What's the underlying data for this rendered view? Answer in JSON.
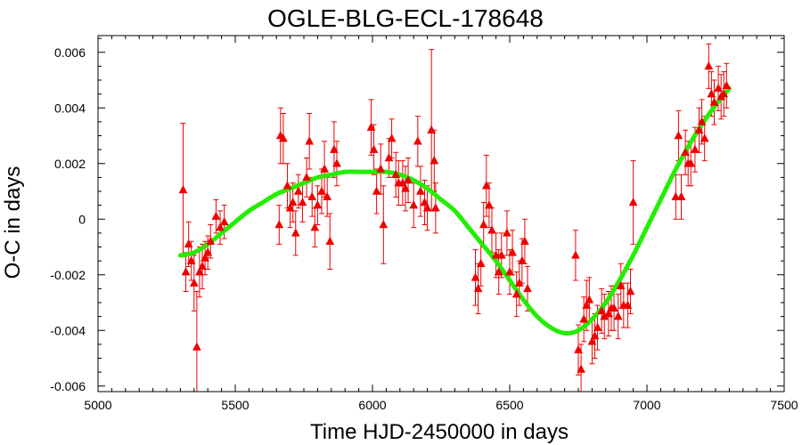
{
  "chart_data": {
    "type": "scatter",
    "title": "OGLE-BLG-ECL-178648",
    "xlabel": "Time HJD-2450000 in days",
    "ylabel": "O-C in days",
    "xlim": [
      5000,
      7500
    ],
    "ylim": [
      -0.0062,
      0.0066
    ],
    "xticks": [
      {
        "value": 5000,
        "label": "5000"
      },
      {
        "value": 5500,
        "label": "5500"
      },
      {
        "value": 6000,
        "label": "6000"
      },
      {
        "value": 6500,
        "label": "6500"
      },
      {
        "value": 7000,
        "label": "7000"
      },
      {
        "value": 7500,
        "label": "7500"
      }
    ],
    "yticks": [
      {
        "value": -0.006,
        "label": "-0.006"
      },
      {
        "value": -0.004,
        "label": "-0.004"
      },
      {
        "value": -0.002,
        "label": "-0.002"
      },
      {
        "value": 0,
        "label": "0"
      },
      {
        "value": 0.002,
        "label": "0.002"
      },
      {
        "value": 0.004,
        "label": "0.004"
      },
      {
        "value": 0.006,
        "label": "0.006"
      }
    ],
    "grid": false,
    "colors": {
      "points": "#ee0000",
      "fit": "#22ee00",
      "axes": "#000000"
    },
    "series": [
      {
        "type": "errorbar-scatter",
        "marker": "triangle",
        "points": [
          {
            "x": 5310,
            "y": 0.00105,
            "err": 0.0024
          },
          {
            "x": 5320,
            "y": -0.0019,
            "err": 0.0007
          },
          {
            "x": 5330,
            "y": -0.0009,
            "err": 0.0008
          },
          {
            "x": 5340,
            "y": -0.0015,
            "err": 0.0007
          },
          {
            "x": 5350,
            "y": -0.0023,
            "err": 0.001
          },
          {
            "x": 5360,
            "y": -0.0046,
            "err": 0.002
          },
          {
            "x": 5370,
            "y": -0.0019,
            "err": 0.0009
          },
          {
            "x": 5380,
            "y": -0.0017,
            "err": 0.0008
          },
          {
            "x": 5390,
            "y": -0.0014,
            "err": 0.0006
          },
          {
            "x": 5400,
            "y": -0.0012,
            "err": 0.0006
          },
          {
            "x": 5410,
            "y": -0.0008,
            "err": 0.0006
          },
          {
            "x": 5430,
            "y": 0.0001,
            "err": 0.0006
          },
          {
            "x": 5445,
            "y": -0.0003,
            "err": 0.0006
          },
          {
            "x": 5460,
            "y": -0.0001,
            "err": 0.0006
          },
          {
            "x": 5660,
            "y": -0.0002,
            "err": 0.0007
          },
          {
            "x": 5665,
            "y": 0.003,
            "err": 0.001
          },
          {
            "x": 5675,
            "y": 0.0029,
            "err": 0.0009
          },
          {
            "x": 5690,
            "y": 0.0012,
            "err": 0.0008
          },
          {
            "x": 5700,
            "y": 0.0004,
            "err": 0.0007
          },
          {
            "x": 5710,
            "y": 0.0006,
            "err": 0.0007
          },
          {
            "x": 5720,
            "y": -0.0005,
            "err": 0.0008
          },
          {
            "x": 5730,
            "y": 0.001,
            "err": 0.0006
          },
          {
            "x": 5745,
            "y": 0.0006,
            "err": 0.0007
          },
          {
            "x": 5760,
            "y": 0.0015,
            "err": 0.0007
          },
          {
            "x": 5770,
            "y": 0.0028,
            "err": 0.001
          },
          {
            "x": 5780,
            "y": 0.0008,
            "err": 0.0007
          },
          {
            "x": 5790,
            "y": -0.0003,
            "err": 0.0007
          },
          {
            "x": 5800,
            "y": 0.0005,
            "err": 0.0007
          },
          {
            "x": 5815,
            "y": 0.001,
            "err": 0.0008
          },
          {
            "x": 5825,
            "y": 0.0018,
            "err": 0.001
          },
          {
            "x": 5835,
            "y": 0.0008,
            "err": 0.0007
          },
          {
            "x": 5845,
            "y": -0.0008,
            "err": 0.001
          },
          {
            "x": 5860,
            "y": 0.0025,
            "err": 0.001
          },
          {
            "x": 5870,
            "y": 0.002,
            "err": 0.0008
          },
          {
            "x": 5995,
            "y": 0.0033,
            "err": 0.001
          },
          {
            "x": 6005,
            "y": 0.0025,
            "err": 0.0009
          },
          {
            "x": 6015,
            "y": 0.001,
            "err": 0.0008
          },
          {
            "x": 6030,
            "y": 0.0018,
            "err": 0.0009
          },
          {
            "x": 6040,
            "y": -0.0002,
            "err": 0.0014
          },
          {
            "x": 6060,
            "y": 0.0022,
            "err": 0.0007
          },
          {
            "x": 6070,
            "y": 0.0029,
            "err": 0.0007
          },
          {
            "x": 6085,
            "y": 0.0016,
            "err": 0.0008
          },
          {
            "x": 6095,
            "y": 0.0013,
            "err": 0.0008
          },
          {
            "x": 6110,
            "y": 0.0013,
            "err": 0.0008
          },
          {
            "x": 6120,
            "y": 0.0011,
            "err": 0.0008
          },
          {
            "x": 6130,
            "y": 0.0014,
            "err": 0.0008
          },
          {
            "x": 6150,
            "y": 0.0005,
            "err": 0.0008
          },
          {
            "x": 6165,
            "y": 0.0028,
            "err": 0.0009
          },
          {
            "x": 6175,
            "y": 0.001,
            "err": 0.0009
          },
          {
            "x": 6190,
            "y": 0.0006,
            "err": 0.0008
          },
          {
            "x": 6200,
            "y": 0.0004,
            "err": 0.0008
          },
          {
            "x": 6215,
            "y": 0.0032,
            "err": 0.0029
          },
          {
            "x": 6225,
            "y": 0.0021,
            "err": 0.0011
          },
          {
            "x": 6230,
            "y": 0.0004,
            "err": 0.0009
          },
          {
            "x": 6375,
            "y": -0.0021,
            "err": 0.001
          },
          {
            "x": 6385,
            "y": -0.0025,
            "err": 0.0009
          },
          {
            "x": 6395,
            "y": -0.0016,
            "err": 0.0008
          },
          {
            "x": 6405,
            "y": -0.0002,
            "err": 0.0008
          },
          {
            "x": 6415,
            "y": 0.0012,
            "err": 0.0011
          },
          {
            "x": 6425,
            "y": 0.0005,
            "err": 0.0008
          },
          {
            "x": 6435,
            "y": -0.0004,
            "err": 0.0008
          },
          {
            "x": 6450,
            "y": -0.0013,
            "err": 0.0008
          },
          {
            "x": 6460,
            "y": -0.0019,
            "err": 0.0008
          },
          {
            "x": 6470,
            "y": -0.0013,
            "err": 0.0008
          },
          {
            "x": 6490,
            "y": -0.0005,
            "err": 0.0008
          },
          {
            "x": 6500,
            "y": -0.0019,
            "err": 0.0008
          },
          {
            "x": 6510,
            "y": -0.0012,
            "err": 0.0008
          },
          {
            "x": 6525,
            "y": -0.0027,
            "err": 0.0008
          },
          {
            "x": 6535,
            "y": -0.0023,
            "err": 0.0008
          },
          {
            "x": 6545,
            "y": -0.0015,
            "err": 0.0008
          },
          {
            "x": 6555,
            "y": -0.0008,
            "err": 0.0008
          },
          {
            "x": 6565,
            "y": -0.0025,
            "err": 0.0008
          },
          {
            "x": 6740,
            "y": -0.0013,
            "err": 0.0009
          },
          {
            "x": 6750,
            "y": -0.0047,
            "err": 0.0009
          },
          {
            "x": 6760,
            "y": -0.0054,
            "err": 0.0009
          },
          {
            "x": 6770,
            "y": -0.0036,
            "err": 0.0008
          },
          {
            "x": 6780,
            "y": -0.0031,
            "err": 0.0009
          },
          {
            "x": 6790,
            "y": -0.0029,
            "err": 0.0008
          },
          {
            "x": 6800,
            "y": -0.0044,
            "err": 0.0008
          },
          {
            "x": 6810,
            "y": -0.0042,
            "err": 0.0008
          },
          {
            "x": 6820,
            "y": -0.0039,
            "err": 0.0008
          },
          {
            "x": 6835,
            "y": -0.0033,
            "err": 0.0008
          },
          {
            "x": 6845,
            "y": -0.0035,
            "err": 0.0008
          },
          {
            "x": 6860,
            "y": -0.0034,
            "err": 0.0008
          },
          {
            "x": 6870,
            "y": -0.0032,
            "err": 0.0008
          },
          {
            "x": 6880,
            "y": -0.0032,
            "err": 0.0008
          },
          {
            "x": 6895,
            "y": -0.0035,
            "err": 0.0008
          },
          {
            "x": 6905,
            "y": -0.0024,
            "err": 0.0008
          },
          {
            "x": 6915,
            "y": -0.0031,
            "err": 0.0008
          },
          {
            "x": 6930,
            "y": -0.0031,
            "err": 0.0008
          },
          {
            "x": 6940,
            "y": -0.0026,
            "err": 0.0008
          },
          {
            "x": 6950,
            "y": 0.0006,
            "err": 0.0015
          },
          {
            "x": 7105,
            "y": 0.0008,
            "err": 0.0008
          },
          {
            "x": 7115,
            "y": 0.003,
            "err": 0.0009
          },
          {
            "x": 7125,
            "y": 0.0008,
            "err": 0.0008
          },
          {
            "x": 7140,
            "y": 0.0024,
            "err": 0.0008
          },
          {
            "x": 7150,
            "y": 0.002,
            "err": 0.0008
          },
          {
            "x": 7160,
            "y": 0.002,
            "err": 0.0008
          },
          {
            "x": 7175,
            "y": 0.0025,
            "err": 0.0008
          },
          {
            "x": 7190,
            "y": 0.0032,
            "err": 0.0008
          },
          {
            "x": 7200,
            "y": 0.0035,
            "err": 0.0008
          },
          {
            "x": 7210,
            "y": 0.0029,
            "err": 0.0008
          },
          {
            "x": 7225,
            "y": 0.0055,
            "err": 0.0008
          },
          {
            "x": 7235,
            "y": 0.0045,
            "err": 0.0008
          },
          {
            "x": 7245,
            "y": 0.0042,
            "err": 0.0008
          },
          {
            "x": 7260,
            "y": 0.0047,
            "err": 0.0008
          },
          {
            "x": 7270,
            "y": 0.0044,
            "err": 0.0008
          },
          {
            "x": 7280,
            "y": 0.0045,
            "err": 0.0008
          },
          {
            "x": 7290,
            "y": 0.0048,
            "err": 0.0008
          }
        ]
      },
      {
        "type": "line",
        "x": [
          5300,
          5350,
          5400,
          5450,
          5500,
          5550,
          5600,
          5650,
          5700,
          5750,
          5800,
          5850,
          5900,
          5950,
          6000,
          6050,
          6100,
          6150,
          6200,
          6250,
          6300,
          6350,
          6400,
          6450,
          6500,
          6550,
          6600,
          6650,
          6700,
          6750,
          6800,
          6850,
          6900,
          6950,
          7000,
          7050,
          7100,
          7150,
          7200,
          7250,
          7300
        ],
        "y": [
          -0.0013,
          -0.0012,
          -0.0009,
          -0.0005,
          -0.0001,
          0.0003,
          0.0006,
          0.0009,
          0.0011,
          0.0013,
          0.0015,
          0.0016,
          0.0017,
          0.0017,
          0.0017,
          0.0017,
          0.0016,
          0.0014,
          0.0011,
          0.0007,
          0.0003,
          -0.0003,
          -0.0009,
          -0.0015,
          -0.0022,
          -0.0029,
          -0.0035,
          -0.0039,
          -0.0041,
          -0.004,
          -0.0036,
          -0.003,
          -0.0022,
          -0.0013,
          -0.0003,
          0.0007,
          0.0017,
          0.0026,
          0.0034,
          0.0041,
          0.0047
        ]
      }
    ]
  }
}
